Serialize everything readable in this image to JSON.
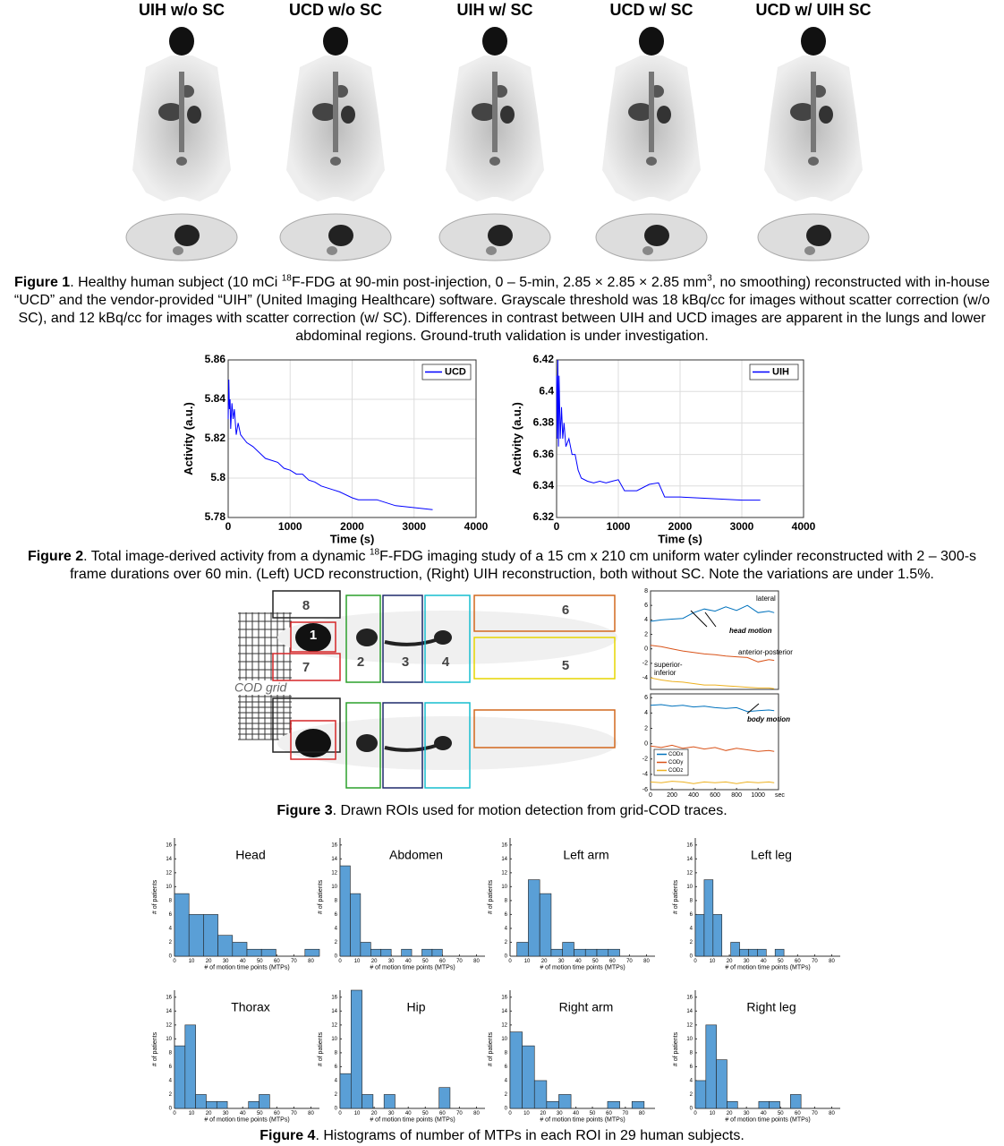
{
  "figure1": {
    "column_labels": [
      "UIH w/o SC",
      "UCD w/o SC",
      "UIH w/ SC",
      "UCD w/ SC",
      "UCD w/ UIH SC"
    ],
    "caption": {
      "label": "Figure 1",
      "parts": [
        ". Healthy human subject (10 mCi ",
        "18",
        "F-FDG at 90-min post-injection, 0 – 5-min, 2.85 × 2.85 × 2.85 mm",
        "3",
        ", no smoothing) reconstructed with in-house “UCD” and the vendor-provided “UIH” (United Imaging Healthcare) software. Grayscale threshold was 18 kBq/cc for images without scatter correction (w/o SC), and 12 kBq/cc for images with scatter correction (w/ SC). Differences in contrast between UIH and UCD images are apparent in the lungs and lower abdominal regions. Ground-truth validation is under investigation."
      ]
    }
  },
  "figure2": {
    "caption": {
      "label": "Figure 2",
      "parts": [
        ". Total image-derived activity from a dynamic ",
        "18",
        "F-FDG imaging study of a 15 cm x 210 cm uniform water cylinder reconstructed with 2 – 300-s frame durations over 60 min. (Left) UCD reconstruction, (Right) UIH reconstruction, both without SC. Note the variations are under 1.5%."
      ]
    }
  },
  "figure3": {
    "roi_labels": [
      "8",
      "1",
      "7",
      "2",
      "3",
      "4",
      "6",
      "5"
    ],
    "grid_label": "COD grid",
    "caption": {
      "label": "Figure 3",
      "parts": [
        ". Drawn ROIs used for motion detection from grid-COD traces."
      ]
    }
  },
  "figure4": {
    "caption": {
      "label": "Figure 4",
      "parts": [
        ". Histograms of number of MTPs in each ROI in 29 human subjects."
      ]
    }
  },
  "chart_data": [
    {
      "type": "line",
      "xlabel": "Time (s)",
      "ylabel": "Activity (a.u.)",
      "x": [
        0,
        10,
        20,
        30,
        40,
        60,
        80,
        100,
        130,
        160,
        200,
        250,
        300,
        400,
        500,
        600,
        800,
        900,
        1000,
        1100,
        1200,
        1300,
        1400,
        1500,
        1700,
        1800,
        2000,
        2100,
        2400,
        2700,
        3000,
        3300
      ],
      "series": [
        {
          "name": "UCD",
          "color": "#0000ff",
          "values": [
            5.83,
            5.85,
            5.835,
            5.84,
            5.825,
            5.838,
            5.83,
            5.835,
            5.822,
            5.828,
            5.822,
            5.82,
            5.818,
            5.816,
            5.813,
            5.81,
            5.808,
            5.805,
            5.804,
            5.802,
            5.802,
            5.799,
            5.798,
            5.796,
            5.794,
            5.793,
            5.79,
            5.789,
            5.789,
            5.786,
            5.785,
            5.784
          ]
        }
      ],
      "xlim": [
        0,
        4000
      ],
      "xticks": [
        0,
        1000,
        2000,
        3000,
        4000
      ],
      "ylim": [
        5.78,
        5.86
      ],
      "yticks": [
        5.78,
        5.8,
        5.82,
        5.84,
        5.86
      ],
      "grid": true,
      "legend": "upper right"
    },
    {
      "type": "line",
      "xlabel": "Time (s)",
      "ylabel": "Activity (a.u.)",
      "x": [
        0,
        10,
        20,
        30,
        40,
        60,
        80,
        100,
        120,
        150,
        200,
        250,
        300,
        350,
        400,
        500,
        600,
        700,
        800,
        900,
        1000,
        1100,
        1300,
        1500,
        1650,
        1750,
        2000,
        2500,
        3000,
        3300
      ],
      "series": [
        {
          "name": "UIH",
          "color": "#0000ff",
          "values": [
            6.41,
            6.37,
            6.42,
            6.365,
            6.41,
            6.37,
            6.39,
            6.37,
            6.38,
            6.365,
            6.37,
            6.36,
            6.36,
            6.35,
            6.345,
            6.343,
            6.342,
            6.343,
            6.342,
            6.343,
            6.344,
            6.337,
            6.337,
            6.341,
            6.342,
            6.333,
            6.333,
            6.332,
            6.331,
            6.331
          ]
        }
      ],
      "xlim": [
        0,
        4000
      ],
      "xticks": [
        0,
        1000,
        2000,
        3000,
        4000
      ],
      "ylim": [
        6.32,
        6.42
      ],
      "yticks": [
        6.32,
        6.34,
        6.36,
        6.38,
        6.4,
        6.42
      ],
      "grid": true,
      "legend": "upper right"
    },
    {
      "type": "line",
      "x": [
        0,
        100,
        200,
        300,
        400,
        500,
        600,
        700,
        800,
        900,
        1000,
        1100,
        1150
      ],
      "series": [
        {
          "color": "#0072bd",
          "values": [
            3.8,
            4,
            4.1,
            4.2,
            5,
            5.5,
            5.2,
            5.8,
            5.3,
            6,
            5,
            5.2,
            5
          ]
        },
        {
          "color": "#d95319",
          "values": [
            0.5,
            0.3,
            0,
            -0.3,
            -0.5,
            -0.7,
            -0.8,
            -1,
            -1.1,
            -1.2,
            -1.8,
            -1.5,
            -1.6
          ]
        },
        {
          "color": "#edb120",
          "values": [
            -4,
            -4.3,
            -4.5,
            -4.6,
            -4.8,
            -5,
            -5,
            -5.1,
            -5.2,
            -5.3,
            -5.4,
            -5.4,
            -5.5
          ]
        }
      ],
      "annotations": [
        "lateral",
        "head motion",
        "anterior-posterior",
        "superior-",
        "inferior"
      ],
      "xlim": [
        0,
        1190
      ],
      "ylim": [
        -5.6,
        8
      ],
      "yticks": [
        -4,
        -2,
        0,
        2,
        4,
        6,
        8
      ]
    },
    {
      "type": "line",
      "x": [
        0,
        100,
        200,
        300,
        400,
        500,
        600,
        700,
        800,
        900,
        1000,
        1100,
        1150
      ],
      "series": [
        {
          "name": "CODx",
          "color": "#0072bd",
          "values": [
            5,
            5.1,
            4.9,
            5,
            4.8,
            4.9,
            4.7,
            4.6,
            4.7,
            4.2,
            4.3,
            4.4,
            4.3
          ]
        },
        {
          "name": "CODy",
          "color": "#d95319",
          "values": [
            -0.3,
            -0.5,
            -0.2,
            -0.6,
            -0.4,
            -0.7,
            -0.5,
            -0.9,
            -0.6,
            -0.8,
            -1,
            -0.9,
            -1
          ]
        },
        {
          "name": "CODz",
          "color": "#edb120",
          "values": [
            -5,
            -5.1,
            -4.9,
            -5,
            -5.2,
            -5,
            -5.1,
            -5,
            -5.2,
            -5,
            -5.1,
            -5,
            -5.1
          ]
        }
      ],
      "annotations": [
        "body motion"
      ],
      "xunit": "sec",
      "legend": "lower left",
      "xlim": [
        0,
        1190
      ],
      "xticks": [
        0,
        200,
        400,
        600,
        800,
        1000
      ],
      "ylim": [
        -6,
        6.5
      ],
      "yticks": [
        -6,
        -4,
        -2,
        0,
        2,
        4,
        6
      ]
    },
    {
      "type": "histogram",
      "title": "Head",
      "bins": [
        0,
        8.5,
        17,
        25.5,
        34,
        42.5,
        51,
        59.5,
        68,
        76.5,
        85
      ],
      "values": [
        9,
        6,
        6,
        3,
        2,
        1,
        1,
        0,
        0,
        1
      ],
      "color": "#5a9fd6",
      "xlabel": "# of motion time points (MTPs)",
      "ylabel": "# of patients",
      "xlim": [
        0,
        85
      ],
      "xticks": [
        0,
        10,
        20,
        30,
        40,
        50,
        60,
        70,
        80
      ],
      "ylim": [
        0,
        17
      ],
      "yticks": [
        0,
        2,
        4,
        6,
        8,
        10,
        12,
        14,
        16
      ]
    },
    {
      "type": "histogram",
      "title": "Abdomen",
      "bins": [
        0,
        6,
        12,
        18,
        24,
        30,
        36,
        42,
        48,
        54,
        60
      ],
      "values": [
        13,
        9,
        2,
        1,
        1,
        0,
        1,
        0,
        1,
        1
      ],
      "color": "#5a9fd6",
      "xlabel": "# of motion time points (MTPs)",
      "ylabel": "# of patients",
      "xlim": [
        0,
        85
      ],
      "xticks": [
        0,
        10,
        20,
        30,
        40,
        50,
        60,
        70,
        80
      ],
      "ylim": [
        0,
        17
      ],
      "yticks": [
        0,
        2,
        4,
        6,
        8,
        10,
        12,
        14,
        16
      ]
    },
    {
      "type": "histogram",
      "title": "Left arm",
      "bins": [
        4,
        10.7,
        17.4,
        24.1,
        30.8,
        37.5,
        44.2,
        50.9,
        57.6,
        64.3
      ],
      "values": [
        2,
        11,
        9,
        1,
        2,
        1,
        1,
        1,
        1
      ],
      "color": "#5a9fd6",
      "xlabel": "# of motion time points (MTPs)",
      "ylabel": "# of patients",
      "xlim": [
        0,
        85
      ],
      "xticks": [
        0,
        10,
        20,
        30,
        40,
        50,
        60,
        70,
        80
      ],
      "ylim": [
        0,
        17
      ],
      "yticks": [
        0,
        2,
        4,
        6,
        8,
        10,
        12,
        14,
        16
      ]
    },
    {
      "type": "histogram",
      "title": "Left leg",
      "bins": [
        0,
        5.2,
        10.4,
        15.6,
        20.8,
        26,
        31.2,
        36.4,
        41.6,
        46.8,
        52
      ],
      "values": [
        6,
        11,
        6,
        0,
        2,
        1,
        1,
        1,
        0,
        1
      ],
      "color": "#5a9fd6",
      "xlabel": "# of motion time points (MTPs)",
      "ylabel": "# of patients",
      "xlim": [
        0,
        85
      ],
      "xticks": [
        0,
        10,
        20,
        30,
        40,
        50,
        60,
        70,
        80
      ],
      "ylim": [
        0,
        17
      ],
      "yticks": [
        0,
        2,
        4,
        6,
        8,
        10,
        12,
        14,
        16
      ]
    },
    {
      "type": "histogram",
      "title": "Thorax",
      "bins": [
        0,
        6.2,
        12.4,
        18.6,
        24.8,
        31,
        37.2,
        43.4,
        49.6,
        55.8
      ],
      "values": [
        9,
        12,
        2,
        1,
        1,
        0,
        0,
        1,
        2
      ],
      "color": "#5a9fd6",
      "xlabel": "# of motion time points (MTPs)",
      "ylabel": "# of patients",
      "xlim": [
        0,
        85
      ],
      "xticks": [
        0,
        10,
        20,
        30,
        40,
        50,
        60,
        70,
        80
      ],
      "ylim": [
        0,
        17
      ],
      "yticks": [
        0,
        2,
        4,
        6,
        8,
        10,
        12,
        14,
        16
      ]
    },
    {
      "type": "histogram",
      "title": "Hip",
      "bins": [
        0,
        6.45,
        12.9,
        19.35,
        25.8,
        32.25,
        38.7,
        45.15,
        51.6,
        58.05,
        64.5
      ],
      "values": [
        5,
        17,
        2,
        0,
        2,
        0,
        0,
        0,
        0,
        3
      ],
      "color": "#5a9fd6",
      "xlabel": "# of motion time points (MTPs)",
      "ylabel": "# of patients",
      "xlim": [
        0,
        85
      ],
      "xticks": [
        0,
        10,
        20,
        30,
        40,
        50,
        60,
        70,
        80
      ],
      "ylim": [
        0,
        17
      ],
      "yticks": [
        0,
        2,
        4,
        6,
        8,
        10,
        12,
        14,
        16
      ]
    },
    {
      "type": "histogram",
      "title": "Right arm",
      "bins": [
        0,
        7.4,
        14.8,
        22.2,
        29.6,
        37,
        44.4,
        51.8,
        59.2,
        66.6,
        74,
        81.4
      ],
      "values": [
        11,
        9,
        4,
        1,
        2,
        0,
        0,
        0,
        1,
        0,
        1
      ],
      "color": "#5a9fd6",
      "xlabel": "# of motion time points (MTPs)",
      "ylabel": "# of patients",
      "xlim": [
        0,
        88
      ],
      "xticks": [
        0,
        10,
        20,
        30,
        40,
        50,
        60,
        70,
        80
      ],
      "ylim": [
        0,
        17
      ],
      "yticks": [
        0,
        2,
        4,
        6,
        8,
        10,
        12,
        14,
        16
      ]
    },
    {
      "type": "histogram",
      "title": "Right leg",
      "bins": [
        0,
        6.2,
        12.4,
        18.6,
        24.8,
        31,
        37.2,
        43.4,
        49.6,
        55.8,
        62
      ],
      "values": [
        4,
        12,
        7,
        1,
        0,
        0,
        1,
        1,
        0,
        2
      ],
      "color": "#5a9fd6",
      "xlabel": "# of motion time points (MTPs)",
      "ylabel": "# of patients",
      "xlim": [
        0,
        85
      ],
      "xticks": [
        0,
        10,
        20,
        30,
        40,
        50,
        60,
        70,
        80
      ],
      "ylim": [
        0,
        17
      ],
      "yticks": [
        0,
        2,
        4,
        6,
        8,
        10,
        12,
        14,
        16
      ]
    }
  ]
}
